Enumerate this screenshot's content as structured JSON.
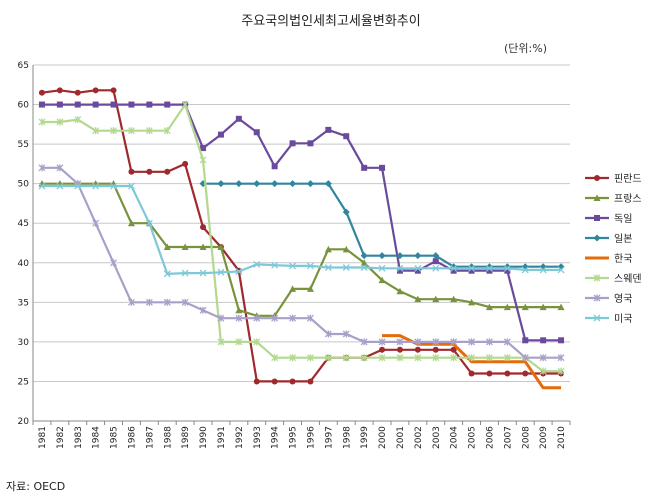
{
  "chart_data": {
    "type": "line",
    "title": "주요국의법인세최고세율변화추이",
    "unit": "(단위:%)",
    "source": "자료: OECD",
    "x": [
      "1981",
      "1982",
      "1983",
      "1984",
      "1985",
      "1986",
      "1987",
      "1988",
      "1989",
      "1990",
      "1991",
      "1992",
      "1993",
      "1994",
      "1995",
      "1996",
      "1997",
      "1998",
      "1999",
      "2000",
      "2001",
      "2002",
      "2003",
      "2004",
      "2005",
      "2006",
      "2007",
      "2008",
      "2009",
      "2010"
    ],
    "yticks": [
      "20",
      "25",
      "30",
      "35",
      "40",
      "45",
      "50",
      "55",
      "60",
      "65"
    ],
    "ylim": [
      20,
      65
    ],
    "grid": true,
    "legend_position": "right",
    "series": [
      {
        "name": "핀란드",
        "color": "#a0292d",
        "marker": "circle",
        "values": [
          61.5,
          61.8,
          61.5,
          61.8,
          61.8,
          51.5,
          51.5,
          51.5,
          52.5,
          44.5,
          42,
          39,
          25,
          25,
          25,
          25,
          28,
          28,
          28,
          29,
          29,
          29,
          29,
          29,
          26,
          26,
          26,
          26,
          26,
          26
        ]
      },
      {
        "name": "프랑스",
        "color": "#77933c",
        "marker": "triangle",
        "values": [
          50,
          50,
          50,
          50,
          50,
          45,
          45,
          42,
          42,
          42,
          42,
          34,
          33.3,
          33.3,
          36.7,
          36.7,
          41.7,
          41.7,
          40,
          37.8,
          36.4,
          35.4,
          35.4,
          35.4,
          35,
          34.4,
          34.4,
          34.4,
          34.4,
          34.4
        ]
      },
      {
        "name": "독일",
        "color": "#6a4a9c",
        "marker": "square",
        "values": [
          60,
          60,
          60,
          60,
          60,
          60,
          60,
          60,
          60,
          54.5,
          56.2,
          58.2,
          56.5,
          52.2,
          55.1,
          55.1,
          56.8,
          56,
          52,
          52,
          39,
          39,
          40.2,
          39,
          39,
          39,
          39,
          30.2,
          30.2,
          30.2
        ]
      },
      {
        "name": "일본",
        "color": "#31859c",
        "marker": "diamond",
        "values": [
          null,
          null,
          null,
          null,
          null,
          null,
          null,
          null,
          null,
          50,
          50,
          50,
          50,
          50,
          50,
          50,
          50,
          46.4,
          40.9,
          40.9,
          40.9,
          40.9,
          40.9,
          39.5,
          39.5,
          39.5,
          39.5,
          39.5,
          39.5,
          39.5
        ]
      },
      {
        "name": "한국",
        "color": "#e46c0a",
        "marker": "none",
        "values": [
          null,
          null,
          null,
          null,
          null,
          null,
          null,
          null,
          null,
          null,
          null,
          null,
          null,
          null,
          null,
          null,
          null,
          null,
          null,
          30.8,
          30.8,
          29.7,
          29.7,
          29.7,
          27.5,
          27.5,
          27.5,
          27.5,
          24.2,
          24.2
        ]
      },
      {
        "name": "스웨덴",
        "color": "#b3d88f",
        "marker": "star",
        "values": [
          57.8,
          57.8,
          58.1,
          56.7,
          56.7,
          56.7,
          56.7,
          56.7,
          60,
          53,
          30,
          30,
          30,
          28,
          28,
          28,
          28,
          28,
          28,
          28,
          28,
          28,
          28,
          28,
          28,
          28,
          28,
          28,
          26.3,
          26.3
        ]
      },
      {
        "name": "영국",
        "color": "#a9a0c9",
        "marker": "star",
        "values": [
          52,
          52,
          50,
          45,
          40,
          35,
          35,
          35,
          35,
          34,
          33,
          33,
          33,
          33,
          33,
          33,
          31,
          31,
          30,
          30,
          30,
          30,
          30,
          30,
          30,
          30,
          30,
          28,
          28,
          28
        ]
      },
      {
        "name": "미국",
        "color": "#7ec8d8",
        "marker": "cross",
        "values": [
          49.7,
          49.7,
          49.7,
          49.7,
          49.7,
          49.7,
          45,
          38.6,
          38.7,
          38.7,
          38.8,
          38.9,
          39.8,
          39.7,
          39.6,
          39.6,
          39.4,
          39.4,
          39.4,
          39.3,
          39.3,
          39.3,
          39.3,
          39.3,
          39.3,
          39.3,
          39.3,
          39.1,
          39.1,
          39.1
        ]
      }
    ]
  }
}
